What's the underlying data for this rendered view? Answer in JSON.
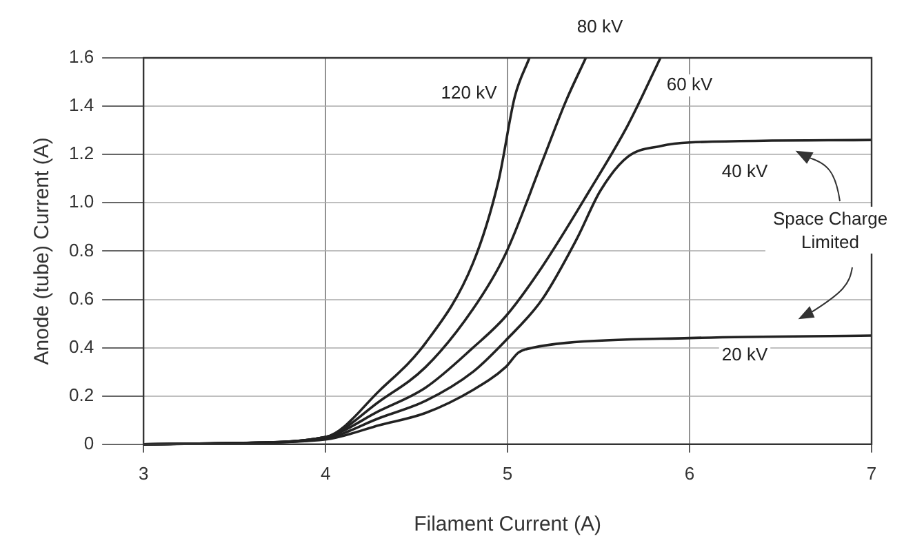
{
  "chart_data": {
    "type": "line",
    "xlabel": "Filament Current (A)",
    "ylabel": "Anode (tube) Current (A)",
    "xlim": [
      3,
      7
    ],
    "xticks": [
      3,
      4,
      5,
      6,
      7
    ],
    "ylim": [
      0,
      1.6
    ],
    "yticks": [
      0,
      0.2,
      0.4,
      0.6,
      0.8,
      {
        "value": 1,
        "label": "1.0"
      },
      1.2,
      1.4,
      1.6
    ],
    "grid": true,
    "legend": false,
    "marker": "none",
    "line_style": "solid",
    "annotations": [
      "Space Charge Limited"
    ],
    "series": [
      {
        "name": "120 kV",
        "color": "#222222",
        "x": [
          3,
          3.5,
          4,
          4.3,
          4.55,
          4.81,
          4.95,
          5.04,
          5.12
        ],
        "values": [
          0,
          0.005,
          0.03,
          0.225,
          0.42,
          0.75,
          1.09,
          1.44,
          1.6
        ]
      },
      {
        "name": "80 kV",
        "color": "#222222",
        "x": [
          3,
          3.5,
          4,
          4.3,
          4.55,
          4.81,
          4.99,
          5.19,
          5.32,
          5.43
        ],
        "values": [
          0,
          0.005,
          0.03,
          0.18,
          0.32,
          0.56,
          0.79,
          1.17,
          1.42,
          1.6
        ]
      },
      {
        "name": "60 kV",
        "color": "#222222",
        "x": [
          3,
          3.5,
          4,
          4.3,
          4.55,
          4.81,
          4.99,
          5.19,
          5.45,
          5.66,
          5.84
        ],
        "values": [
          0,
          0.005,
          0.03,
          0.14,
          0.235,
          0.4,
          0.53,
          0.735,
          1.05,
          1.32,
          1.6
        ]
      },
      {
        "name": "40 kV",
        "color": "#222222",
        "x": [
          3,
          3.5,
          4,
          4.3,
          4.55,
          4.81,
          4.99,
          5.19,
          5.38,
          5.51,
          5.66,
          5.84,
          6,
          7
        ],
        "values": [
          0,
          0.005,
          0.025,
          0.11,
          0.18,
          0.3,
          0.43,
          0.6,
          0.85,
          1.05,
          1.19,
          1.235,
          1.25,
          1.26
        ]
      },
      {
        "name": "20 kV",
        "color": "#222222",
        "x": [
          3,
          3.5,
          4,
          4.3,
          4.55,
          4.81,
          4.99,
          5.06,
          5.14,
          5.32,
          6,
          7
        ],
        "values": [
          0,
          0.005,
          0.02,
          0.08,
          0.13,
          0.225,
          0.32,
          0.38,
          0.4,
          0.42,
          0.44,
          0.45
        ]
      }
    ]
  }
}
